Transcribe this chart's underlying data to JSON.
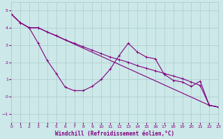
{
  "line1_x": [
    0,
    1,
    2,
    3,
    4,
    5,
    6,
    7,
    8,
    9,
    10,
    11,
    12,
    13,
    14,
    15,
    16,
    17,
    18,
    19,
    20,
    21,
    22,
    23
  ],
  "line1_y": [
    4.8,
    4.3,
    4.0,
    3.1,
    2.1,
    1.35,
    0.55,
    0.35,
    0.35,
    0.6,
    1.0,
    1.6,
    2.4,
    3.1,
    2.6,
    2.3,
    2.2,
    1.3,
    0.95,
    0.85,
    0.6,
    0.9,
    -0.5,
    -0.6
  ],
  "line2_x": [
    0,
    1,
    2,
    3,
    22,
    23
  ],
  "line2_y": [
    4.8,
    4.3,
    4.0,
    4.0,
    -0.5,
    -0.6
  ],
  "line3_x": [
    0,
    1,
    2,
    3,
    4,
    5,
    6,
    7,
    8,
    9,
    10,
    11,
    12,
    13,
    14,
    15,
    16,
    17,
    18,
    19,
    20,
    21,
    22,
    23
  ],
  "line3_y": [
    4.8,
    4.3,
    4.0,
    4.0,
    3.75,
    3.55,
    3.3,
    3.1,
    2.9,
    2.7,
    2.5,
    2.3,
    2.15,
    2.0,
    1.8,
    1.65,
    1.5,
    1.35,
    1.2,
    1.05,
    0.85,
    0.65,
    -0.5,
    -0.6
  ],
  "background_color": "#cce8e8",
  "grid_color": "#aacccc",
  "line_color": "#800080",
  "xlim": [
    0,
    23
  ],
  "ylim": [
    -1.5,
    5.5
  ],
  "yticks": [
    -1,
    0,
    1,
    2,
    3,
    4,
    5
  ],
  "xticks": [
    0,
    1,
    2,
    3,
    4,
    5,
    6,
    7,
    8,
    9,
    10,
    11,
    12,
    13,
    14,
    15,
    16,
    17,
    18,
    19,
    20,
    21,
    22,
    23
  ],
  "xlabel": "Windchill (Refroidissement éolien,°C)",
  "xlabel_color": "#800080",
  "xlabel_fontsize": 5.5,
  "tick_color": "#800080",
  "tick_fontsize": 4.5,
  "marker_size": 2.5,
  "linewidth": 0.8
}
